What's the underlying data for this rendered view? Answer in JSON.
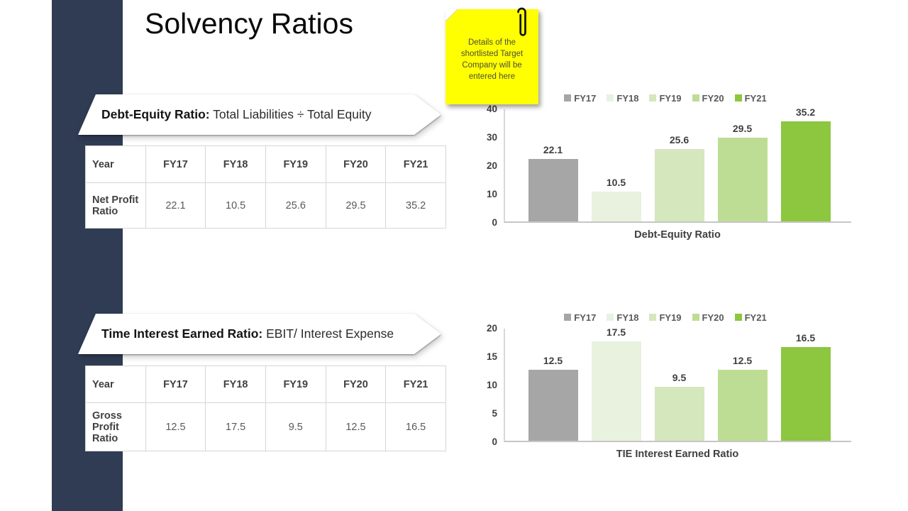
{
  "slide": {
    "title": "Solvency Ratios"
  },
  "colors": {
    "sidebar": "#2f3c54",
    "sticky_note": "#ffff00",
    "bar_palette": [
      "#a6a6a6",
      "#e8f2de",
      "#d5e7bd",
      "#bedd94",
      "#8dc63f"
    ]
  },
  "sticky_note": {
    "text": "Details of the shortlisted Target Company will be entered here",
    "icon": "paperclip-icon"
  },
  "sections": [
    {
      "banner_bold": "Debt-Equity Ratio:",
      "banner_rest": " Total Liabilities ÷ Total Equity",
      "table": {
        "headers": [
          "Year",
          "FY17",
          "FY18",
          "FY19",
          "FY20",
          "FY21"
        ],
        "rows": [
          {
            "label": "Net Profit Ratio",
            "values": [
              "22.1",
              "10.5",
              "25.6",
              "29.5",
              "35.2"
            ]
          }
        ]
      }
    },
    {
      "banner_bold": "Time Interest Earned Ratio:",
      "banner_rest": " EBIT/ Interest Expense",
      "table": {
        "headers": [
          "Year",
          "FY17",
          "FY18",
          "FY19",
          "FY20",
          "FY21"
        ],
        "rows": [
          {
            "label": "Gross Profit Ratio",
            "values": [
              "12.5",
              "17.5",
              "9.5",
              "12.5",
              "16.5"
            ]
          }
        ]
      }
    }
  ],
  "chart_data": [
    {
      "type": "bar",
      "title": "",
      "categories": [
        "FY17",
        "FY18",
        "FY19",
        "FY20",
        "FY21"
      ],
      "values": [
        22.1,
        10.5,
        25.6,
        29.5,
        35.2
      ],
      "xlabel": "Debt-Equity Ratio",
      "ylabel": "",
      "ylim": [
        0,
        40
      ],
      "yticks": [
        0,
        10,
        20,
        30,
        40
      ],
      "legend": [
        "FY17",
        "FY18",
        "FY19",
        "FY20",
        "FY21"
      ],
      "legend_position": "top",
      "colors": [
        "#a6a6a6",
        "#e8f2de",
        "#d5e7bd",
        "#bedd94",
        "#8dc63f"
      ],
      "grid": false,
      "data_labels": [
        "22.1",
        "10.5",
        "25.6",
        "29.5",
        "35.2"
      ]
    },
    {
      "type": "bar",
      "title": "",
      "categories": [
        "FY17",
        "FY18",
        "FY19",
        "FY20",
        "FY21"
      ],
      "values": [
        12.5,
        17.5,
        9.5,
        12.5,
        16.5
      ],
      "xlabel": "TIE Interest Earned Ratio",
      "ylabel": "",
      "ylim": [
        0,
        20
      ],
      "yticks": [
        0,
        5,
        10,
        15,
        20
      ],
      "legend": [
        "FY17",
        "FY18",
        "FY19",
        "FY20",
        "FY21"
      ],
      "legend_position": "top",
      "colors": [
        "#a6a6a6",
        "#e8f2de",
        "#d5e7bd",
        "#bedd94",
        "#8dc63f"
      ],
      "grid": false,
      "data_labels": [
        "12.5",
        "17.5",
        "9.5",
        "12.5",
        "16.5"
      ]
    }
  ]
}
